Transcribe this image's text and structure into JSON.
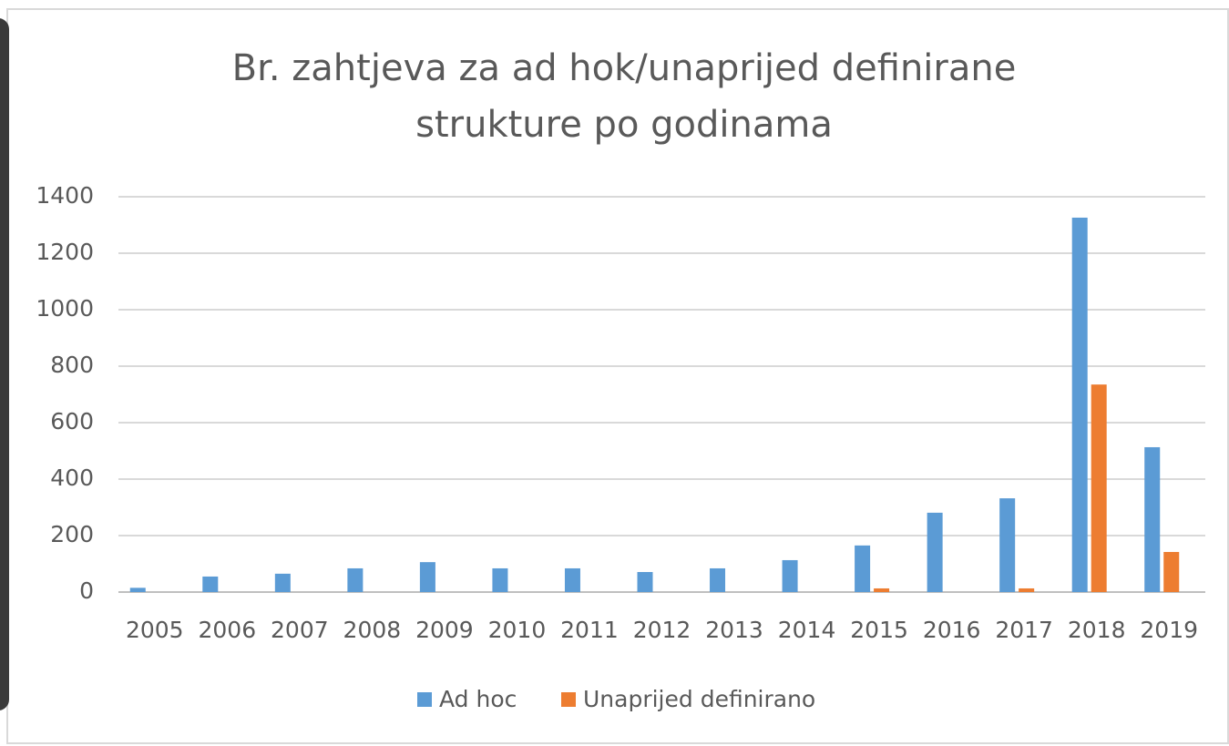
{
  "chart_data": {
    "type": "bar",
    "title": [
      "Br. zahtjeva za ad hok/unaprijed definirane",
      "strukture po godinama"
    ],
    "categories": [
      "2005",
      "2006",
      "2007",
      "2008",
      "2009",
      "2010",
      "2011",
      "2012",
      "2013",
      "2014",
      "2015",
      "2016",
      "2017",
      "2018",
      "2019"
    ],
    "series": [
      {
        "name": "Ad hoc",
        "color": "#5b9bd5",
        "values": [
          15,
          55,
          65,
          84,
          106,
          84,
          84,
          71,
          84,
          113,
          165,
          281,
          332,
          1326,
          513
        ]
      },
      {
        "name": "Unaprijed definirano",
        "color": "#ed7d31",
        "values": [
          0,
          0,
          0,
          0,
          0,
          0,
          0,
          0,
          0,
          0,
          13,
          0,
          13,
          735,
          142
        ]
      }
    ],
    "ylim": [
      0,
      1400
    ],
    "yticks": [
      0,
      200,
      400,
      600,
      800,
      1000,
      1200,
      1400
    ],
    "grid": true,
    "legend": "bottom"
  }
}
